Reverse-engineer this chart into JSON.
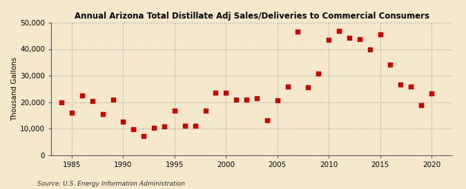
{
  "title": "Annual Arizona Total Distillate Adj Sales/Deliveries to Commercial Consumers",
  "ylabel": "Thousand Gallons",
  "source": "Source: U.S. Energy Information Administration",
  "background_color": "#f5e8cc",
  "plot_background_color": "#f5e8cc",
  "marker_color": "#cc0000",
  "marker_size": 18,
  "xlim": [
    1983,
    2022
  ],
  "ylim": [
    0,
    50000
  ],
  "xticks": [
    1985,
    1990,
    1995,
    2000,
    2005,
    2010,
    2015,
    2020
  ],
  "yticks": [
    0,
    10000,
    20000,
    30000,
    40000,
    50000
  ],
  "years": [
    1984,
    1985,
    1986,
    1987,
    1988,
    1989,
    1990,
    1991,
    1992,
    1993,
    1994,
    1995,
    1996,
    1997,
    1998,
    1999,
    2000,
    2001,
    2002,
    2003,
    2004,
    2005,
    2006,
    2007,
    2008,
    2009,
    2010,
    2011,
    2012,
    2013,
    2014,
    2015,
    2016,
    2017,
    2018,
    2019,
    2020
  ],
  "values": [
    19800,
    16000,
    22500,
    20300,
    15500,
    21000,
    12700,
    9700,
    7200,
    10300,
    10700,
    16800,
    11000,
    11100,
    16800,
    23500,
    23500,
    21000,
    21000,
    21500,
    13100,
    20700,
    25800,
    46600,
    25500,
    30700,
    43500,
    46900,
    44400,
    43700,
    39800,
    45500,
    34200,
    26500,
    25900,
    18900,
    23200
  ]
}
